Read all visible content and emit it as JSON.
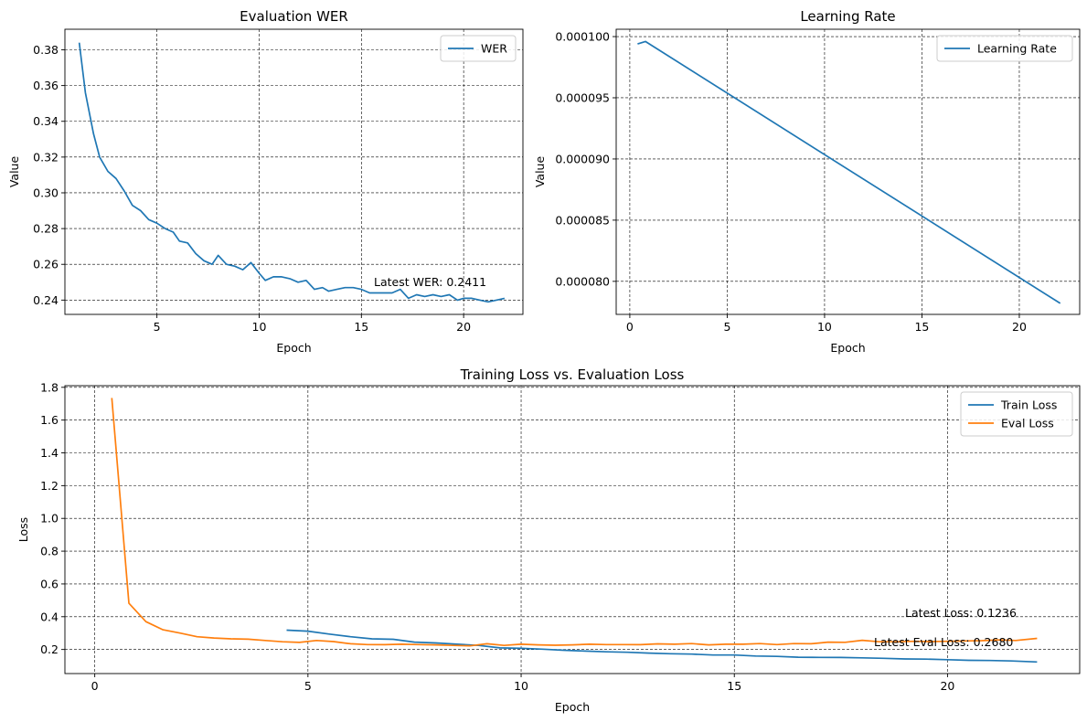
{
  "chart_data": [
    {
      "type": "line",
      "title": "Evaluation WER",
      "xlabel": "Epoch",
      "ylabel": "Value",
      "xlim": [
        0.5,
        22.9
      ],
      "ylim": [
        0.232,
        0.3915
      ],
      "xticks": [
        5,
        10,
        15,
        20
      ],
      "yticks": [
        0.24,
        0.26,
        0.28,
        0.3,
        0.32,
        0.34,
        0.36,
        0.38
      ],
      "ytick_labels": [
        "0.24",
        "0.26",
        "0.28",
        "0.30",
        "0.32",
        "0.34",
        "0.36",
        "0.38"
      ],
      "grid": true,
      "legend": "top-right",
      "annotation": "Latest WER: 0.2411",
      "series": [
        {
          "name": "WER",
          "color": "#1f77b4",
          "x": [
            1.2,
            1.5,
            1.9,
            2.2,
            2.6,
            3.0,
            3.4,
            3.8,
            4.2,
            4.6,
            5.0,
            5.4,
            5.8,
            6.1,
            6.5,
            6.9,
            7.3,
            7.7,
            8.0,
            8.4,
            8.8,
            9.2,
            9.6,
            10.0,
            10.3,
            10.7,
            11.1,
            11.5,
            11.9,
            12.3,
            12.7,
            13.1,
            13.4,
            13.8,
            14.2,
            14.6,
            15.0,
            15.4,
            15.8,
            16.2,
            16.5,
            16.9,
            17.3,
            17.7,
            18.1,
            18.5,
            18.9,
            19.3,
            19.7,
            20.0,
            20.4,
            20.8,
            21.2,
            21.6,
            22.0
          ],
          "values": [
            0.384,
            0.356,
            0.333,
            0.32,
            0.312,
            0.308,
            0.301,
            0.293,
            0.29,
            0.285,
            0.283,
            0.28,
            0.278,
            0.273,
            0.272,
            0.266,
            0.262,
            0.26,
            0.265,
            0.26,
            0.259,
            0.257,
            0.261,
            0.255,
            0.251,
            0.253,
            0.253,
            0.252,
            0.25,
            0.251,
            0.246,
            0.247,
            0.245,
            0.246,
            0.247,
            0.247,
            0.246,
            0.244,
            0.244,
            0.244,
            0.244,
            0.246,
            0.241,
            0.243,
            0.242,
            0.243,
            0.242,
            0.243,
            0.24,
            0.241,
            0.241,
            0.24,
            0.239,
            0.24,
            0.241
          ]
        }
      ]
    },
    {
      "type": "line",
      "title": "Learning Rate",
      "xlabel": "Epoch",
      "ylabel": "Value",
      "xlim": [
        -0.7,
        23.1
      ],
      "ylim": [
        7.73e-05,
        0.0001006
      ],
      "xticks": [
        0,
        5,
        10,
        15,
        20
      ],
      "yticks": [
        8e-05,
        8.5e-05,
        9e-05,
        9.5e-05,
        0.0001
      ],
      "ytick_labels": [
        "0.000080",
        "0.000085",
        "0.000090",
        "0.000095",
        "0.000100"
      ],
      "grid": true,
      "legend": "top-right",
      "series": [
        {
          "name": "Learning Rate",
          "color": "#1f77b4",
          "x": [
            0.4,
            0.8,
            22.1
          ],
          "values": [
            9.94e-05,
            9.96e-05,
            7.82e-05
          ]
        }
      ]
    },
    {
      "type": "line",
      "title": "Training Loss vs. Evaluation Loss",
      "xlabel": "Epoch",
      "ylabel": "Loss",
      "xlim": [
        -0.7,
        23.1
      ],
      "ylim": [
        0.053,
        1.81
      ],
      "xticks": [
        0,
        5,
        10,
        15,
        20
      ],
      "yticks": [
        0.2,
        0.4,
        0.6,
        0.8,
        1.0,
        1.2,
        1.4,
        1.6,
        1.8
      ],
      "ytick_labels": [
        "0.2",
        "0.4",
        "0.6",
        "0.8",
        "1.0",
        "1.2",
        "1.4",
        "1.6",
        "1.8"
      ],
      "grid": true,
      "legend": "top-right",
      "annotations": [
        "Latest Loss: 0.1236",
        "Latest Eval Loss: 0.2680"
      ],
      "series": [
        {
          "name": "Train Loss",
          "color": "#1f77b4",
          "x": [
            4.5,
            5.0,
            5.5,
            6.0,
            6.5,
            7.0,
            7.5,
            8.0,
            8.5,
            9.0,
            9.5,
            10.0,
            10.5,
            11.0,
            11.5,
            12.0,
            12.5,
            13.0,
            13.5,
            14.0,
            14.5,
            15.0,
            15.5,
            16.0,
            16.5,
            17.0,
            17.5,
            18.0,
            18.5,
            19.0,
            19.5,
            20.0,
            20.5,
            21.0,
            21.5,
            22.1
          ],
          "values": [
            0.318,
            0.312,
            0.294,
            0.278,
            0.265,
            0.262,
            0.245,
            0.24,
            0.232,
            0.225,
            0.21,
            0.207,
            0.202,
            0.195,
            0.19,
            0.186,
            0.183,
            0.178,
            0.174,
            0.172,
            0.166,
            0.166,
            0.16,
            0.158,
            0.153,
            0.152,
            0.151,
            0.149,
            0.146,
            0.142,
            0.141,
            0.138,
            0.134,
            0.133,
            0.13,
            0.124
          ]
        },
        {
          "name": "Eval Loss",
          "color": "#ff7f0e",
          "x": [
            0.4,
            0.8,
            1.2,
            1.6,
            2.0,
            2.4,
            2.8,
            3.2,
            3.6,
            4.0,
            4.4,
            4.8,
            5.2,
            5.6,
            6.0,
            6.4,
            6.8,
            7.2,
            7.6,
            8.0,
            8.4,
            8.8,
            9.2,
            9.6,
            10.0,
            10.4,
            10.8,
            11.2,
            11.6,
            12.0,
            12.4,
            12.8,
            13.2,
            13.6,
            14.0,
            14.4,
            14.8,
            15.2,
            15.6,
            16.0,
            16.4,
            16.8,
            17.2,
            17.6,
            18.0,
            18.4,
            18.8,
            19.2,
            19.6,
            20.0,
            20.4,
            20.8,
            21.2,
            21.6,
            22.1
          ],
          "values": [
            1.735,
            0.482,
            0.37,
            0.32,
            0.3,
            0.278,
            0.27,
            0.265,
            0.263,
            0.255,
            0.247,
            0.243,
            0.255,
            0.248,
            0.235,
            0.23,
            0.229,
            0.232,
            0.23,
            0.228,
            0.225,
            0.222,
            0.235,
            0.225,
            0.232,
            0.228,
            0.226,
            0.228,
            0.232,
            0.23,
            0.23,
            0.229,
            0.234,
            0.232,
            0.236,
            0.228,
            0.232,
            0.232,
            0.236,
            0.23,
            0.236,
            0.235,
            0.245,
            0.244,
            0.256,
            0.247,
            0.247,
            0.25,
            0.248,
            0.25,
            0.252,
            0.254,
            0.258,
            0.255,
            0.268
          ]
        }
      ]
    }
  ]
}
